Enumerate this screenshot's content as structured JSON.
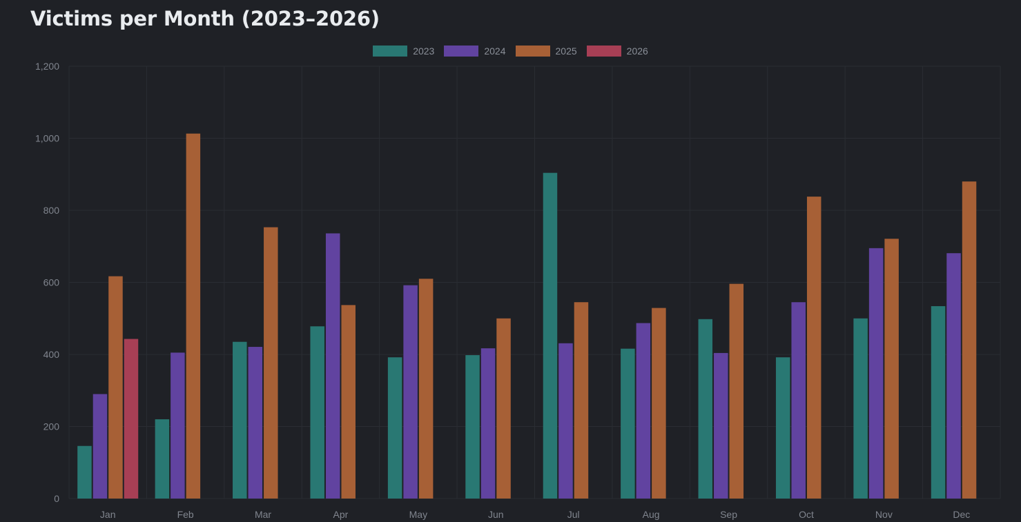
{
  "title": "Victims per Month (2023–2026)",
  "chart_data": {
    "type": "bar",
    "title": "Victims per Month (2023–2026)",
    "xlabel": "",
    "ylabel": "",
    "ylim": [
      0,
      1200
    ],
    "yticks": [
      0,
      200,
      400,
      600,
      800,
      1000,
      1200
    ],
    "ytick_labels": [
      "0",
      "200",
      "400",
      "600",
      "800",
      "1,000",
      "1,200"
    ],
    "grid": true,
    "legend_position": "top-center",
    "categories": [
      "Jan",
      "Feb",
      "Mar",
      "Apr",
      "May",
      "Jun",
      "Jul",
      "Aug",
      "Sep",
      "Oct",
      "Nov",
      "Dec"
    ],
    "series": [
      {
        "name": "2023",
        "color": "#297873",
        "values": [
          146,
          220,
          435,
          478,
          392,
          398,
          904,
          416,
          498,
          392,
          500,
          534
        ]
      },
      {
        "name": "2024",
        "color": "#6143a0",
        "values": [
          290,
          405,
          421,
          736,
          592,
          417,
          431,
          487,
          404,
          545,
          695,
          681
        ]
      },
      {
        "name": "2025",
        "color": "#a76036",
        "values": [
          617,
          1013,
          753,
          537,
          610,
          500,
          545,
          529,
          596,
          838,
          721,
          880
        ]
      },
      {
        "name": "2026",
        "color": "#a73f55",
        "values": [
          443,
          null,
          null,
          null,
          null,
          null,
          null,
          null,
          null,
          null,
          null,
          null
        ]
      }
    ]
  }
}
